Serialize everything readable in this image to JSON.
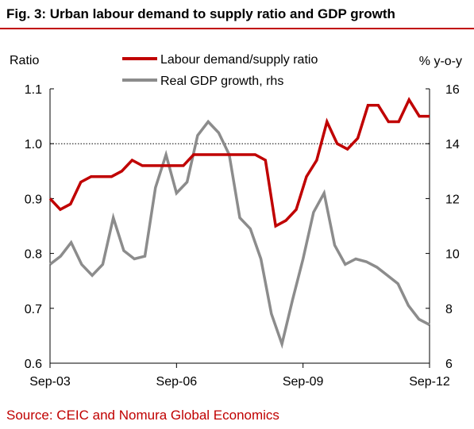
{
  "title": "Fig. 3: Urban labour demand to supply ratio and GDP growth",
  "source": "Source: CEIC and Nomura Global Economics",
  "colors": {
    "accent": "#c00000",
    "series_1": "#c00000",
    "series_2": "#8c8c8c"
  },
  "chart_data": {
    "type": "line",
    "ylabel": "Ratio",
    "y2label": "% y-o-y",
    "ylim": [
      0.6,
      1.1
    ],
    "y_ticks": [
      "0.6",
      "0.7",
      "0.8",
      "0.9",
      "1.0",
      "1.1"
    ],
    "y2lim": [
      6,
      16
    ],
    "y2_ticks": [
      "6",
      "8",
      "10",
      "12",
      "14",
      "16"
    ],
    "x_ticks": [
      "Sep-03",
      "Sep-06",
      "Sep-09",
      "Sep-12"
    ],
    "reference_line": 1.0,
    "grid": false,
    "legend": "top-center",
    "series": [
      {
        "name": "Labour demand/supply ratio",
        "axis": "left",
        "values": [
          0.9,
          0.88,
          0.89,
          0.93,
          0.94,
          0.94,
          0.94,
          0.95,
          0.97,
          0.96,
          0.96,
          0.96,
          0.96,
          0.96,
          0.98,
          0.98,
          0.98,
          0.98,
          0.98,
          0.98,
          0.98,
          0.97,
          0.85,
          0.86,
          0.88,
          0.94,
          0.97,
          1.04,
          1.0,
          0.99,
          1.01,
          1.07,
          1.07,
          1.04,
          1.04,
          1.08,
          1.05,
          1.05
        ]
      },
      {
        "name": "Real GDP growth, rhs",
        "axis": "right",
        "values": [
          9.6,
          9.9,
          10.4,
          9.6,
          9.2,
          9.6,
          11.3,
          10.1,
          9.8,
          9.9,
          12.4,
          13.6,
          12.2,
          12.6,
          14.3,
          14.8,
          14.4,
          13.6,
          11.3,
          10.9,
          9.8,
          7.8,
          6.7,
          8.3,
          9.8,
          11.5,
          12.2,
          10.3,
          9.6,
          9.8,
          9.7,
          9.5,
          9.2,
          8.9,
          8.1,
          7.6,
          7.4
        ]
      }
    ]
  }
}
